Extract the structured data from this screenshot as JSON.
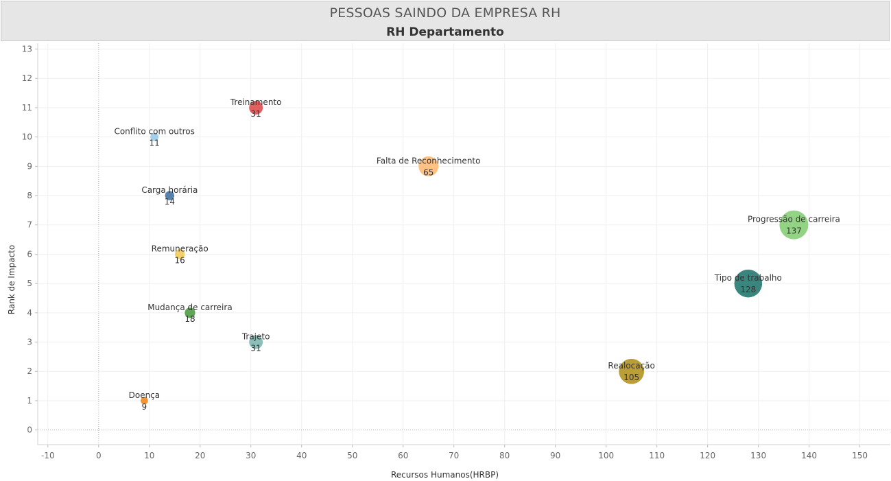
{
  "header": {
    "title": "PESSOAS SAINDO DA EMPRESA RH",
    "subtitle": "RH Departamento"
  },
  "chart_data": {
    "type": "scatter",
    "title": "PESSOAS SAINDO DA EMPRESA RH",
    "subtitle": "RH Departamento",
    "xlabel": "Recursos Humanos(HRBP)",
    "ylabel": "Rank de Impacto",
    "xlim": [
      -12,
      156
    ],
    "ylim": [
      -0.5,
      13.2
    ],
    "xticks": [
      -10,
      0,
      10,
      20,
      30,
      40,
      50,
      60,
      70,
      80,
      90,
      100,
      110,
      120,
      130,
      140,
      150
    ],
    "yticks": [
      0,
      1,
      2,
      3,
      4,
      5,
      6,
      7,
      8,
      9,
      10,
      11,
      12,
      13
    ],
    "grid": true,
    "points": [
      {
        "label": "Treinamento",
        "x": 31,
        "y": 11,
        "value": "31",
        "color": "#e15759"
      },
      {
        "label": "Conflito com outros",
        "x": 11,
        "y": 10,
        "value": "11",
        "color": "#a0cbe8"
      },
      {
        "label": "Falta de Reconhecimento",
        "x": 65,
        "y": 9,
        "value": "65",
        "color": "#ffbe7d"
      },
      {
        "label": "Carga horária",
        "x": 14,
        "y": 8,
        "value": "14",
        "color": "#4e79a7"
      },
      {
        "label": "Progressão de carreira",
        "x": 137,
        "y": 7,
        "value": "137",
        "color": "#8cd17d"
      },
      {
        "label": "Remuneração",
        "x": 16,
        "y": 6,
        "value": "16",
        "color": "#f1ce63"
      },
      {
        "label": "Tipo de trabalho",
        "x": 128,
        "y": 5,
        "value": "128",
        "color": "#2f7f77"
      },
      {
        "label": "Mudança de carreira",
        "x": 18,
        "y": 4,
        "value": "18",
        "color": "#59a14f"
      },
      {
        "label": "Trajeto",
        "x": 31,
        "y": 3,
        "value": "31",
        "color": "#86bcb6"
      },
      {
        "label": "Realocação",
        "x": 105,
        "y": 2,
        "value": "105",
        "color": "#b6992d"
      },
      {
        "label": "Doença",
        "x": 9,
        "y": 1,
        "value": "9",
        "color": "#f28e2b"
      }
    ]
  }
}
